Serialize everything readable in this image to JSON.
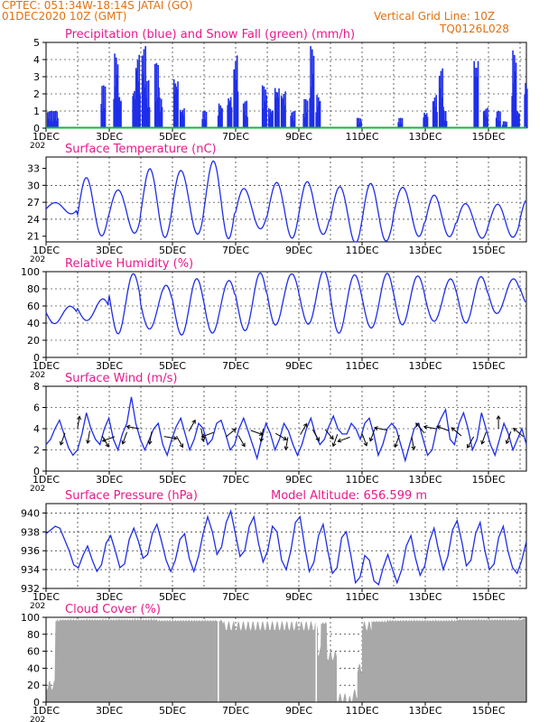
{
  "header": {
    "line1_left": "CPTEC:   051:34W-18:14S   JATAI (GO)",
    "line2_left": "01DEC2020 10Z (GMT)",
    "line1_right": "Vertical Grid Line: 10Z",
    "line2_right": "TQ0126L028",
    "orange": "#e2700f"
  },
  "colors": {
    "pink": "#e8198b",
    "blue": "#1f2ee8",
    "green": "#1bb33a",
    "gray": "#a8a8a8"
  },
  "x_axis": {
    "tick_labels": [
      "1DEC",
      "3DEC",
      "5DEC",
      "7DEC",
      "9DEC",
      "11DEC",
      "13DEC",
      "15DEC"
    ],
    "cut_label": "202"
  },
  "chart_data": [
    {
      "type": "bar",
      "title": "Precipitation (blue) and Snow Fall (green) (mm/h)",
      "ylim": [
        0,
        5
      ],
      "yticks": [
        "0",
        "1",
        "2",
        "3",
        "4",
        "5"
      ],
      "series": [
        {
          "name": "Precipitation",
          "color": "blue",
          "bursts": [
            [
              0.9,
              0.5
            ],
            [
              1.1,
              1.0
            ],
            [
              1.2,
              1.0
            ],
            [
              1.3,
              1.0
            ],
            [
              2.8,
              2.5
            ],
            [
              3.2,
              4.4
            ],
            [
              3.3,
              2.0
            ],
            [
              3.8,
              2.5
            ],
            [
              3.9,
              4.4
            ],
            [
              4.1,
              4.8
            ],
            [
              4.2,
              2.8
            ],
            [
              4.5,
              3.8
            ],
            [
              4.6,
              1.8
            ],
            [
              5.1,
              3.0
            ],
            [
              5.3,
              1.2
            ],
            [
              6.0,
              1.0
            ],
            [
              6.5,
              1.5
            ],
            [
              6.8,
              2.0
            ],
            [
              7.0,
              4.4
            ],
            [
              7.3,
              1.6
            ],
            [
              7.9,
              2.5
            ],
            [
              8.1,
              1.2
            ],
            [
              8.3,
              2.5
            ],
            [
              8.5,
              2.2
            ],
            [
              8.8,
              1.0
            ],
            [
              9.2,
              1.7
            ],
            [
              9.4,
              4.8
            ],
            [
              9.6,
              2.0
            ],
            [
              10.9,
              0.6
            ],
            [
              12.2,
              0.6
            ],
            [
              13.0,
              1.0
            ],
            [
              13.3,
              2.0
            ],
            [
              13.5,
              3.5
            ],
            [
              13.6,
              1.0
            ],
            [
              14.6,
              4.2
            ],
            [
              14.9,
              1.2
            ],
            [
              15.3,
              1.0
            ],
            [
              15.5,
              0.4
            ],
            [
              15.9,
              1.1
            ],
            [
              15.8,
              4.6
            ],
            [
              16.2,
              3.0
            ]
          ]
        },
        {
          "name": "Snow Fall",
          "color": "green",
          "values": [
            0
          ]
        }
      ]
    },
    {
      "type": "line",
      "title": "Surface Temperature (nC)",
      "ylim": [
        20,
        35
      ],
      "yticks": [
        "21",
        "24",
        "27",
        "30",
        "33"
      ],
      "series": [
        {
          "name": "Temperature",
          "color": "blue",
          "min": [
            25,
            21,
            21.5,
            21,
            21,
            21,
            22,
            21,
            21,
            20,
            20,
            21,
            21,
            20.5,
            21,
            21
          ],
          "max": [
            27,
            31,
            29.5,
            32.5,
            33,
            34,
            29.5,
            30.5,
            30.5,
            30,
            30,
            30,
            28,
            27,
            26.5,
            28,
            26.5
          ]
        }
      ]
    },
    {
      "type": "line",
      "title": "Relative Humidity (%)",
      "ylim": [
        0,
        100
      ],
      "yticks": [
        "0",
        "20",
        "40",
        "60",
        "80",
        "100"
      ],
      "series": [
        {
          "name": "Humidity",
          "color": "blue",
          "min": [
            40,
            42,
            30,
            31,
            28,
            27,
            32,
            38,
            38,
            30,
            32,
            40,
            40,
            42,
            50,
            60,
            60
          ],
          "max": [
            60,
            68,
            97,
            85,
            90,
            92,
            96,
            100,
            99,
            98,
            97,
            95,
            92,
            93,
            93,
            92,
            90
          ]
        }
      ]
    },
    {
      "type": "line",
      "title": "Surface Wind (m/s)",
      "ylim": [
        0,
        8
      ],
      "yticks": [
        "0",
        "2",
        "4",
        "6",
        "8"
      ],
      "series": [
        {
          "name": "Wind speed",
          "color": "blue",
          "profile": [
            2.5,
            3.0,
            4.0,
            4.8,
            3.5,
            2.2,
            1.5,
            2.0,
            3.5,
            5.5,
            4.0,
            3.0,
            2.5,
            4.0,
            5.0,
            3.0,
            2.0,
            3.5,
            4.5,
            7.0,
            4.5,
            3.0,
            2.0,
            3.0,
            4.0,
            4.5,
            2.5,
            1.5,
            3.0,
            4.2,
            5.0,
            3.5,
            2.0,
            3.0,
            4.5,
            4.0,
            2.5,
            3.0,
            4.5,
            4.8,
            3.5,
            2.0,
            2.5,
            4.0,
            5.0,
            3.8,
            2.5,
            1.2,
            3.0,
            4.5,
            3.5,
            2.0,
            3.0,
            4.5,
            3.8,
            2.5,
            1.5,
            2.5,
            4.0,
            5.0,
            3.5,
            2.5,
            3.0,
            4.2,
            5.2,
            4.0,
            3.5,
            3.5,
            4.5,
            4.0,
            3.0,
            4.5,
            5.0,
            3.5,
            1.5,
            2.5,
            4.0,
            4.5,
            4.0,
            2.5,
            1.0,
            2.5,
            4.0,
            4.5,
            3.0,
            1.5,
            2.0,
            4.0,
            5.0,
            5.8,
            3.0,
            2.5,
            4.5,
            5.5,
            4.0,
            2.0,
            3.0,
            5.5,
            4.0,
            2.5,
            1.5,
            3.0,
            4.5,
            3.5,
            2.0,
            3.0,
            4.0,
            2.5
          ]
        }
      ],
      "barb_directions_deg": [
        250,
        80,
        260,
        300,
        200,
        250,
        170,
        260,
        350,
        300,
        60,
        280,
        200,
        40,
        300,
        340,
        260,
        330,
        260,
        60,
        300,
        310,
        250,
        200,
        290,
        250,
        170,
        250,
        280,
        130,
        170,
        160,
        140,
        240,
        250,
        90,
        250,
        140
      ]
    },
    {
      "type": "line",
      "title": "Surface Pressure (hPa)",
      "annotation": "Model Altitude: 656.599  m",
      "ylim": [
        932,
        941
      ],
      "yticks": [
        "932",
        "934",
        "936",
        "938",
        "940"
      ],
      "series": [
        {
          "name": "Pressure",
          "color": "blue",
          "profile": [
            937.8,
            938.2,
            938.6,
            938.4,
            937.2,
            936.0,
            934.5,
            934.2,
            935.5,
            936.5,
            935.0,
            933.8,
            934.5,
            936.8,
            937.6,
            936.0,
            934.2,
            934.6,
            937.2,
            938.4,
            937.0,
            935.2,
            935.6,
            937.8,
            938.8,
            937.0,
            935.0,
            933.8,
            935.0,
            937.2,
            937.8,
            935.2,
            933.8,
            935.4,
            937.8,
            939.6,
            938.0,
            935.6,
            936.4,
            939.0,
            940.2,
            937.8,
            935.4,
            936.0,
            938.6,
            939.6,
            936.8,
            934.8,
            936.0,
            938.6,
            938.0,
            935.0,
            934.0,
            936.0,
            939.0,
            939.6,
            936.4,
            933.8,
            934.8,
            937.6,
            938.8,
            936.0,
            933.6,
            934.2,
            937.4,
            938.0,
            935.5,
            932.6,
            933.2,
            935.5,
            935.0,
            932.8,
            932.4,
            934.2,
            935.6,
            934.0,
            932.6,
            934.0,
            936.5,
            937.6,
            935.2,
            933.4,
            934.4,
            937.0,
            938.4,
            936.0,
            934.0,
            935.4,
            938.2,
            939.2,
            937.0,
            934.4,
            935.0,
            937.8,
            939.0,
            936.0,
            934.0,
            934.6,
            937.4,
            938.6,
            936.0,
            934.2,
            933.6,
            935.0,
            937.0
          ]
        }
      ]
    },
    {
      "type": "area",
      "title": "Cloud Cover (%)",
      "ylim": [
        0,
        100
      ],
      "yticks": [
        "0",
        "20",
        "40",
        "60",
        "80",
        "100"
      ],
      "series": [
        {
          "name": "Cloud cover",
          "color": "gray",
          "segments": [
            [
              1.0,
              35
            ],
            [
              1.3,
              20
            ],
            [
              1.45,
              98
            ],
            [
              4.5,
              99
            ],
            [
              6.6,
              98
            ],
            [
              9.6,
              90
            ],
            [
              9.7,
              60
            ],
            [
              9.9,
              95
            ],
            [
              10.2,
              55
            ],
            [
              10.5,
              5
            ],
            [
              10.7,
              2
            ],
            [
              10.85,
              10
            ],
            [
              11.0,
              40
            ],
            [
              11.3,
              90
            ],
            [
              11.8,
              97
            ],
            [
              12.5,
              98
            ],
            [
              13.0,
              98
            ],
            [
              14.0,
              98
            ],
            [
              15.0,
              99
            ],
            [
              16.0,
              99
            ]
          ]
        }
      ]
    }
  ]
}
